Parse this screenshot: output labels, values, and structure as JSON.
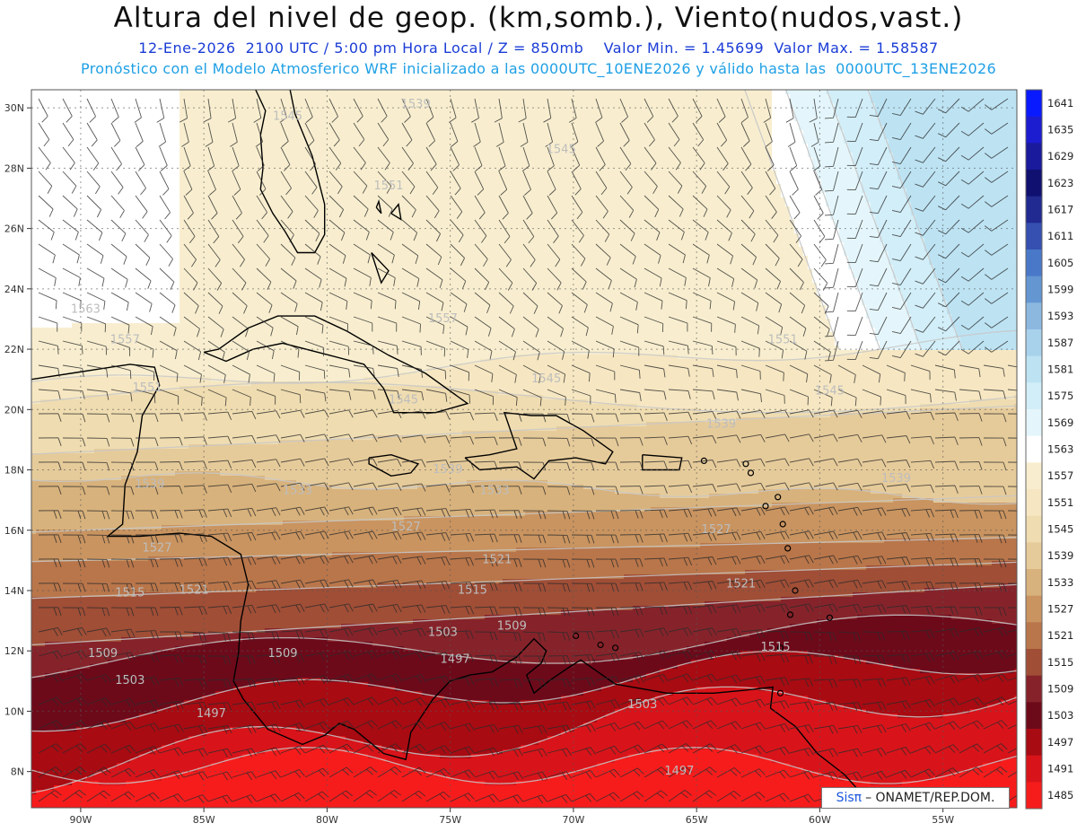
{
  "title": "Altura del nivel de geop. (km,somb.), Viento(nudos,vast.)",
  "subtitle_line1": "12-Ene-2026  2100 UTC / 5:00 pm Hora Local / Z = 850mb    Valor Min. = 1.45699  Valor Max. = 1.58587",
  "subtitle_line2": "Pronóstico con el Modelo Atmosferico WRF inicializado a las 0000UTC_10ENE2026 y válido hasta las  0000UTC_13ENE2026",
  "lat_labels": [
    "30N",
    "28N",
    "26N",
    "24N",
    "22N",
    "20N",
    "18N",
    "16N",
    "14N",
    "12N",
    "10N",
    "8N"
  ],
  "lon_labels": [
    "90W",
    "85W",
    "80W",
    "75W",
    "70W",
    "65W",
    "60W",
    "55W"
  ],
  "colorbar_values": [
    "1641",
    "1635",
    "1629",
    "1623",
    "1617",
    "1611",
    "1605",
    "1599",
    "1593",
    "1587",
    "1581",
    "1575",
    "1569",
    "1563",
    "1557",
    "1551",
    "1545",
    "1539",
    "1533",
    "1527",
    "1521",
    "1515",
    "1509",
    "1503",
    "1497",
    "1491",
    "1485"
  ],
  "colorbar_colors": [
    "#0a1aff",
    "#1c1cd0",
    "#1a1a9c",
    "#101070",
    "#202a90",
    "#3550b0",
    "#4a78c8",
    "#6496d2",
    "#8cb8e0",
    "#a8d2ec",
    "#bde3f3",
    "#d2eef8",
    "#e4f6fb",
    "#ffffff",
    "#f8eecf",
    "#f6e7c2",
    "#efdcb0",
    "#e6cb9a",
    "#d8b27c",
    "#c99460",
    "#b9764a",
    "#a04e36",
    "#86232a",
    "#6d0a1a",
    "#a80b12",
    "#d8141a",
    "#f61c1c"
  ],
  "contour_labels": [
    {
      "text": "1539",
      "lon": -76.4,
      "lat": 30.0
    },
    {
      "text": "1545",
      "lon": -81.6,
      "lat": 29.6
    },
    {
      "text": "1545",
      "lon": -70.5,
      "lat": 28.5
    },
    {
      "text": "1551",
      "lon": -77.5,
      "lat": 27.3
    },
    {
      "text": "1563",
      "lon": -89.8,
      "lat": 23.2
    },
    {
      "text": "1557",
      "lon": -88.2,
      "lat": 22.2
    },
    {
      "text": "1557",
      "lon": -75.3,
      "lat": 22.9
    },
    {
      "text": "1551",
      "lon": -61.5,
      "lat": 22.2
    },
    {
      "text": "1551",
      "lon": -87.3,
      "lat": 20.6
    },
    {
      "text": "1545",
      "lon": -71.1,
      "lat": 20.9
    },
    {
      "text": "1545",
      "lon": -76.9,
      "lat": 20.2
    },
    {
      "text": "1545",
      "lon": -59.6,
      "lat": 20.5
    },
    {
      "text": "1539",
      "lon": -64.0,
      "lat": 19.4
    },
    {
      "text": "1539",
      "lon": -75.1,
      "lat": 17.9
    },
    {
      "text": "1533",
      "lon": -73.2,
      "lat": 17.2
    },
    {
      "text": "1539",
      "lon": -87.2,
      "lat": 17.4
    },
    {
      "text": "1533",
      "lon": -81.2,
      "lat": 17.2
    },
    {
      "text": "1539",
      "lon": -56.9,
      "lat": 17.6
    },
    {
      "text": "1527",
      "lon": -76.8,
      "lat": 16.0
    },
    {
      "text": "1527",
      "lon": -64.2,
      "lat": 15.9
    },
    {
      "text": "1527",
      "lon": -86.9,
      "lat": 15.3
    },
    {
      "text": "1521",
      "lon": -73.1,
      "lat": 14.9
    },
    {
      "text": "1521",
      "lon": -63.2,
      "lat": 14.1
    },
    {
      "text": "1521",
      "lon": -85.4,
      "lat": 13.9
    },
    {
      "text": "1515",
      "lon": -88.0,
      "lat": 13.8
    },
    {
      "text": "1515",
      "lon": -74.1,
      "lat": 13.9
    },
    {
      "text": "1515",
      "lon": -61.8,
      "lat": 12.0
    },
    {
      "text": "1509",
      "lon": -72.5,
      "lat": 12.7
    },
    {
      "text": "1509",
      "lon": -89.1,
      "lat": 11.8
    },
    {
      "text": "1509",
      "lon": -81.8,
      "lat": 11.8
    },
    {
      "text": "1503",
      "lon": -75.3,
      "lat": 12.5
    },
    {
      "text": "1503",
      "lon": -88.0,
      "lat": 10.9
    },
    {
      "text": "1503",
      "lon": -67.2,
      "lat": 10.1
    },
    {
      "text": "1497",
      "lon": -84.7,
      "lat": 9.8
    },
    {
      "text": "1497",
      "lon": -74.8,
      "lat": 11.6
    },
    {
      "text": "1497",
      "lon": -65.7,
      "lat": 7.9
    }
  ],
  "credit": {
    "sis": "Sisπ",
    "rest": " – ONAMET/REP.DOM."
  },
  "map_extent": {
    "lon_min": -92.0,
    "lon_max": -52.0,
    "lat_min": 6.8,
    "lat_max": 30.6
  }
}
